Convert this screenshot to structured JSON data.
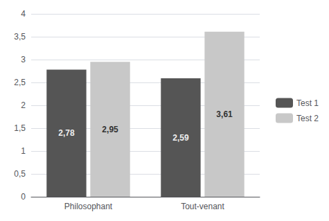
{
  "chart_data": {
    "type": "bar",
    "categories": [
      "Philosophant",
      "Tout-venant"
    ],
    "series": [
      {
        "name": "Test 1",
        "color": "#555555",
        "values": [
          2.78,
          2.59
        ],
        "value_labels": [
          "2,78",
          "2,59"
        ]
      },
      {
        "name": "Test 2",
        "color": "#c8c8c8",
        "values": [
          2.95,
          3.61
        ],
        "value_labels": [
          "2,95",
          "3,61"
        ]
      }
    ],
    "ylim": [
      0,
      4
    ],
    "yticks": [
      0,
      {
        "value": 0.5,
        "label": "0,5"
      },
      1,
      {
        "value": 1.5,
        "label": "1,5"
      },
      2,
      {
        "value": 2.5,
        "label": "2,5"
      },
      3,
      {
        "value": 3.5,
        "label": "3,5"
      },
      4
    ],
    "grid": true,
    "legend": "right",
    "data_labels": true
  }
}
